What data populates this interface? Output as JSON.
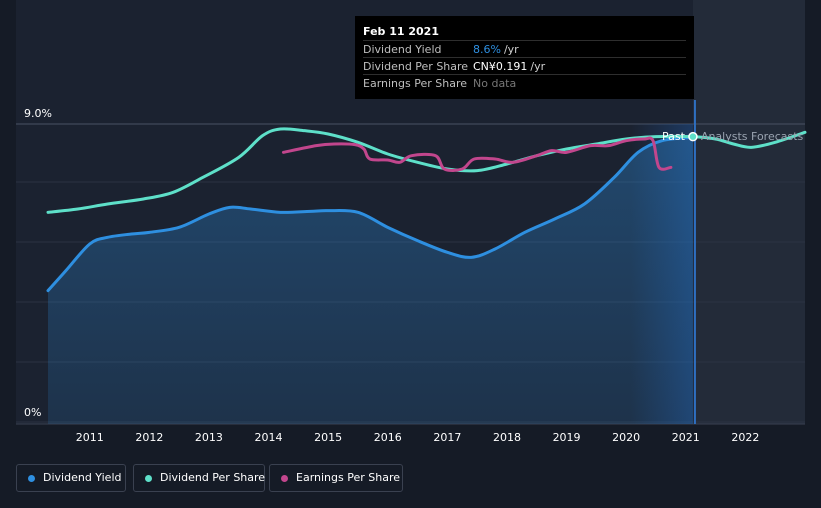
{
  "chart_data": {
    "type": "line",
    "y_axis": {
      "top_label": "9.0%",
      "bottom_label": "0%",
      "min": 0,
      "max": 9.0,
      "unit": "%"
    },
    "x_ticks": [
      "2011",
      "2012",
      "2013",
      "2014",
      "2015",
      "2016",
      "2017",
      "2018",
      "2019",
      "2020",
      "2021",
      "2022"
    ],
    "x_range": [
      2010.3,
      2023.0
    ],
    "grid": true,
    "past_label": "Past",
    "forecast_label": "Analysts Forecasts",
    "current_date": 2021.12,
    "series": [
      {
        "name": "Dividend Yield",
        "color": "#2e8fe0",
        "fill": true,
        "points": [
          [
            2010.3,
            4.0
          ],
          [
            2010.6,
            4.6
          ],
          [
            2011.0,
            5.4
          ],
          [
            2011.3,
            5.6
          ],
          [
            2011.7,
            5.7
          ],
          [
            2012.0,
            5.75
          ],
          [
            2012.5,
            5.9
          ],
          [
            2013.0,
            6.3
          ],
          [
            2013.35,
            6.5
          ],
          [
            2013.7,
            6.45
          ],
          [
            2014.2,
            6.35
          ],
          [
            2014.7,
            6.38
          ],
          [
            2015.0,
            6.4
          ],
          [
            2015.5,
            6.35
          ],
          [
            2016.0,
            5.9
          ],
          [
            2016.5,
            5.5
          ],
          [
            2017.0,
            5.15
          ],
          [
            2017.4,
            5.0
          ],
          [
            2017.8,
            5.25
          ],
          [
            2018.3,
            5.75
          ],
          [
            2018.8,
            6.15
          ],
          [
            2019.3,
            6.6
          ],
          [
            2019.8,
            7.4
          ],
          [
            2020.2,
            8.15
          ],
          [
            2020.6,
            8.5
          ],
          [
            2021.12,
            8.6
          ]
        ]
      },
      {
        "name": "Dividend Per Share",
        "color": "#5ee0c9",
        "fill": false,
        "points": [
          [
            2010.3,
            6.35
          ],
          [
            2010.8,
            6.45
          ],
          [
            2011.3,
            6.6
          ],
          [
            2011.9,
            6.75
          ],
          [
            2012.4,
            6.95
          ],
          [
            2012.9,
            7.4
          ],
          [
            2013.5,
            8.0
          ],
          [
            2013.9,
            8.65
          ],
          [
            2014.2,
            8.85
          ],
          [
            2014.6,
            8.8
          ],
          [
            2015.0,
            8.7
          ],
          [
            2015.5,
            8.45
          ],
          [
            2016.0,
            8.1
          ],
          [
            2016.5,
            7.85
          ],
          [
            2017.0,
            7.65
          ],
          [
            2017.5,
            7.6
          ],
          [
            2018.0,
            7.8
          ],
          [
            2018.5,
            8.05
          ],
          [
            2019.0,
            8.25
          ],
          [
            2019.5,
            8.4
          ],
          [
            2020.0,
            8.55
          ],
          [
            2020.5,
            8.62
          ],
          [
            2021.12,
            8.62
          ],
          [
            2021.5,
            8.55
          ],
          [
            2021.8,
            8.4
          ],
          [
            2022.1,
            8.3
          ],
          [
            2022.5,
            8.45
          ],
          [
            2023.0,
            8.75
          ]
        ]
      },
      {
        "name": "Earnings Per Share",
        "color": "#c2468d",
        "fill": false,
        "points": [
          [
            2014.25,
            8.15
          ],
          [
            2014.8,
            8.35
          ],
          [
            2015.1,
            8.4
          ],
          [
            2015.45,
            8.38
          ],
          [
            2015.6,
            8.25
          ],
          [
            2015.7,
            7.95
          ],
          [
            2016.0,
            7.92
          ],
          [
            2016.2,
            7.85
          ],
          [
            2016.4,
            8.05
          ],
          [
            2016.8,
            8.05
          ],
          [
            2016.95,
            7.65
          ],
          [
            2017.25,
            7.65
          ],
          [
            2017.45,
            7.95
          ],
          [
            2017.8,
            7.95
          ],
          [
            2018.1,
            7.85
          ],
          [
            2018.5,
            8.05
          ],
          [
            2018.75,
            8.2
          ],
          [
            2019.0,
            8.15
          ],
          [
            2019.4,
            8.35
          ],
          [
            2019.7,
            8.35
          ],
          [
            2020.0,
            8.5
          ],
          [
            2020.3,
            8.55
          ],
          [
            2020.45,
            8.5
          ],
          [
            2020.55,
            7.7
          ],
          [
            2020.75,
            7.7
          ]
        ]
      }
    ]
  },
  "tooltip": {
    "date": "Feb 11 2021",
    "rows": [
      {
        "label": "Dividend Yield",
        "value": "8.6%",
        "unit": "/yr",
        "value_color": "#2e8fe0"
      },
      {
        "label": "Dividend Per Share",
        "value": "CN¥0.191",
        "unit": "/yr",
        "value_color": "#ffffff"
      },
      {
        "label": "Earnings Per Share",
        "value": "No data",
        "unit": "",
        "value_color": "#777777"
      }
    ]
  },
  "legend": [
    {
      "label": "Dividend Yield",
      "color": "#2e8fe0"
    },
    {
      "label": "Dividend Per Share",
      "color": "#5ee0c9"
    },
    {
      "label": "Earnings Per Share",
      "color": "#c2468d"
    }
  ]
}
